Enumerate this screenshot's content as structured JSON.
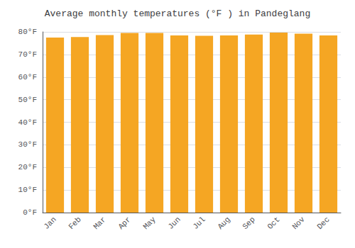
{
  "chart_data": {
    "type": "bar",
    "title": "Average monthly temperatures (°F ) in Pandeglang",
    "categories": [
      "Jan",
      "Feb",
      "Mar",
      "Apr",
      "May",
      "Jun",
      "Jul",
      "Aug",
      "Sep",
      "Oct",
      "Nov",
      "Dec"
    ],
    "values": [
      77.5,
      77.7,
      78.6,
      79.5,
      79.5,
      78.4,
      78.3,
      78.4,
      78.8,
      79.7,
      79.2,
      78.4
    ],
    "color": "#F5A623",
    "ylim": [
      0,
      80
    ],
    "yticks": [
      {
        "value": 0,
        "label": "0°F"
      },
      {
        "value": 10,
        "label": "10°F"
      },
      {
        "value": 20,
        "label": "20°F"
      },
      {
        "value": 30,
        "label": "30°F"
      },
      {
        "value": 40,
        "label": "40°F"
      },
      {
        "value": 50,
        "label": "50°F"
      },
      {
        "value": 60,
        "label": "60°F"
      },
      {
        "value": 70,
        "label": "70°F"
      },
      {
        "value": 80,
        "label": "80°F"
      }
    ],
    "grid": true
  }
}
